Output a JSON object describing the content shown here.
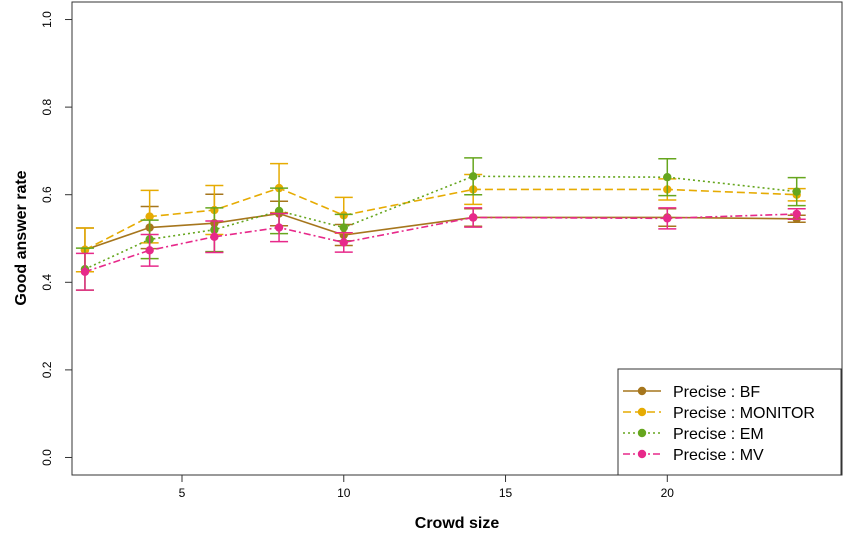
{
  "chart_data": {
    "type": "line",
    "title": "",
    "xlabel": "Crowd size",
    "ylabel": "Good answer rate",
    "xlim": [
      1.6,
      25.4
    ],
    "ylim": [
      -0.04,
      1.04
    ],
    "x_ticks": [
      5,
      10,
      15,
      20
    ],
    "x_tick_labels": [
      "5",
      "10",
      "15",
      "20"
    ],
    "y_ticks": [
      0.0,
      0.2,
      0.4,
      0.6,
      0.8,
      1.0
    ],
    "y_tick_labels": [
      "0.0",
      "0.2",
      "0.4",
      "0.6",
      "0.8",
      "1.0"
    ],
    "grid": false,
    "legend_position": "bottom-right",
    "x": [
      2,
      4,
      6,
      8,
      10,
      14,
      20,
      24
    ],
    "series": [
      {
        "name": "Precise : BF",
        "color": "#a6761d",
        "dash": "solid",
        "values": [
          0.474,
          0.525,
          0.535,
          0.557,
          0.508,
          0.548,
          0.548,
          0.545
        ],
        "err": [
          0.05,
          0.048,
          0.066,
          0.028,
          0.024,
          0.02,
          0.02,
          0.008
        ]
      },
      {
        "name": "Precise : MONITOR",
        "color": "#e6ab02",
        "dash": "dashed",
        "values": [
          0.474,
          0.55,
          0.565,
          0.615,
          0.553,
          0.612,
          0.612,
          0.6
        ],
        "err": [
          0.05,
          0.06,
          0.056,
          0.056,
          0.041,
          0.034,
          0.024,
          0.014
        ]
      },
      {
        "name": "Precise : EM",
        "color": "#66a61e",
        "dash": "dotted",
        "values": [
          0.43,
          0.498,
          0.52,
          0.563,
          0.525,
          0.642,
          0.64,
          0.607
        ],
        "err": [
          0.048,
          0.044,
          0.05,
          0.052,
          0.03,
          0.042,
          0.042,
          0.032
        ]
      },
      {
        "name": "Precise : MV",
        "color": "#e7298a",
        "dash": "dashdot",
        "values": [
          0.424,
          0.473,
          0.504,
          0.525,
          0.491,
          0.548,
          0.546,
          0.556
        ],
        "err": [
          0.042,
          0.036,
          0.036,
          0.032,
          0.022,
          0.022,
          0.024,
          0.012
        ]
      }
    ]
  }
}
